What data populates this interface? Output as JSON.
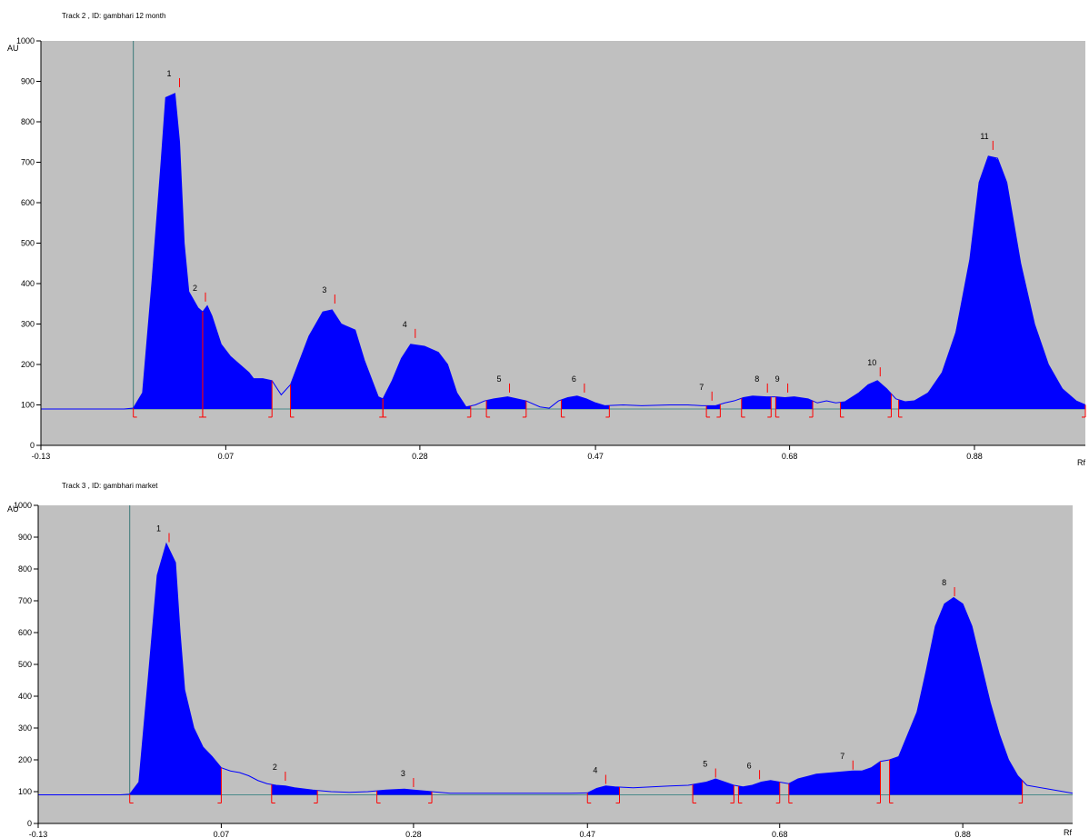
{
  "chart_data": [
    {
      "type": "area",
      "title": "Track  2 , ID: gambhari 12 month",
      "ylabel": "AU",
      "xlabel": "Rf",
      "xlim": [
        -0.13,
        1.0
      ],
      "ylim": [
        0,
        1000
      ],
      "x_ticks": [
        "-0.13",
        "0.07",
        "0.28",
        "0.47",
        "0.68",
        "0.88"
      ],
      "x_tick_values": [
        -0.13,
        0.07,
        0.28,
        0.47,
        0.68,
        0.88
      ],
      "y_ticks": [
        "0",
        "100",
        "200",
        "300",
        "400",
        "500",
        "600",
        "700",
        "800",
        "900",
        "1000"
      ],
      "baseline": 90,
      "application_rf": -0.03,
      "grid": false,
      "trace": [
        [
          -0.13,
          90
        ],
        [
          -0.04,
          90
        ],
        [
          -0.03,
          92
        ],
        [
          -0.02,
          130
        ],
        [
          -0.01,
          400
        ],
        [
          0.0,
          700
        ],
        [
          0.005,
          860
        ],
        [
          0.015,
          870
        ],
        [
          0.02,
          750
        ],
        [
          0.025,
          500
        ],
        [
          0.03,
          380
        ],
        [
          0.04,
          340
        ],
        [
          0.045,
          330
        ],
        [
          0.05,
          345
        ],
        [
          0.055,
          320
        ],
        [
          0.065,
          250
        ],
        [
          0.075,
          220
        ],
        [
          0.085,
          200
        ],
        [
          0.095,
          180
        ],
        [
          0.1,
          165
        ],
        [
          0.11,
          165
        ],
        [
          0.12,
          160
        ],
        [
          0.13,
          125
        ],
        [
          0.14,
          150
        ],
        [
          0.16,
          270
        ],
        [
          0.175,
          330
        ],
        [
          0.185,
          335
        ],
        [
          0.195,
          300
        ],
        [
          0.21,
          285
        ],
        [
          0.22,
          210
        ],
        [
          0.235,
          120
        ],
        [
          0.24,
          115
        ],
        [
          0.25,
          160
        ],
        [
          0.26,
          215
        ],
        [
          0.27,
          250
        ],
        [
          0.285,
          245
        ],
        [
          0.3,
          230
        ],
        [
          0.31,
          200
        ],
        [
          0.32,
          130
        ],
        [
          0.33,
          95
        ],
        [
          0.34,
          100
        ],
        [
          0.35,
          110
        ],
        [
          0.36,
          115
        ],
        [
          0.375,
          120
        ],
        [
          0.385,
          115
        ],
        [
          0.395,
          110
        ],
        [
          0.41,
          95
        ],
        [
          0.42,
          92
        ],
        [
          0.43,
          110
        ],
        [
          0.44,
          118
        ],
        [
          0.45,
          122
        ],
        [
          0.46,
          115
        ],
        [
          0.47,
          105
        ],
        [
          0.48,
          98
        ],
        [
          0.5,
          100
        ],
        [
          0.52,
          98
        ],
        [
          0.55,
          100
        ],
        [
          0.57,
          100
        ],
        [
          0.585,
          98
        ],
        [
          0.6,
          98
        ],
        [
          0.61,
          105
        ],
        [
          0.62,
          110
        ],
        [
          0.63,
          118
        ],
        [
          0.64,
          122
        ],
        [
          0.655,
          120
        ],
        [
          0.665,
          120
        ],
        [
          0.675,
          118
        ],
        [
          0.685,
          120
        ],
        [
          0.7,
          115
        ],
        [
          0.71,
          105
        ],
        [
          0.72,
          110
        ],
        [
          0.73,
          105
        ],
        [
          0.74,
          108
        ],
        [
          0.755,
          130
        ],
        [
          0.765,
          150
        ],
        [
          0.775,
          160
        ],
        [
          0.785,
          140
        ],
        [
          0.795,
          115
        ],
        [
          0.805,
          108
        ],
        [
          0.815,
          110
        ],
        [
          0.83,
          130
        ],
        [
          0.845,
          180
        ],
        [
          0.86,
          280
        ],
        [
          0.875,
          460
        ],
        [
          0.885,
          650
        ],
        [
          0.895,
          715
        ],
        [
          0.905,
          710
        ],
        [
          0.915,
          650
        ],
        [
          0.93,
          450
        ],
        [
          0.945,
          300
        ],
        [
          0.96,
          200
        ],
        [
          0.975,
          140
        ],
        [
          0.99,
          110
        ],
        [
          1.0,
          100
        ]
      ],
      "peaks": [
        {
          "label": "1",
          "rf": 0.02,
          "au": 890,
          "start": -0.03,
          "end": 0.045
        },
        {
          "label": "2",
          "rf": 0.048,
          "au": 360,
          "start": 0.045,
          "end": 0.12
        },
        {
          "label": "3",
          "rf": 0.188,
          "au": 355,
          "start": 0.14,
          "end": 0.24
        },
        {
          "label": "4",
          "rf": 0.275,
          "au": 270,
          "start": 0.24,
          "end": 0.335
        },
        {
          "label": "5",
          "rf": 0.377,
          "au": 135,
          "start": 0.352,
          "end": 0.395
        },
        {
          "label": "6",
          "rf": 0.458,
          "au": 135,
          "start": 0.433,
          "end": 0.485
        },
        {
          "label": "7",
          "rf": 0.596,
          "au": 115,
          "start": 0.59,
          "end": 0.605
        },
        {
          "label": "8",
          "rf": 0.656,
          "au": 135,
          "start": 0.628,
          "end": 0.66
        },
        {
          "label": "9",
          "rf": 0.678,
          "au": 135,
          "start": 0.665,
          "end": 0.705
        },
        {
          "label": "10",
          "rf": 0.778,
          "au": 175,
          "start": 0.735,
          "end": 0.79
        },
        {
          "label": "11",
          "rf": 0.9,
          "au": 735,
          "start": 0.798,
          "end": 1.0
        }
      ]
    },
    {
      "type": "area",
      "title": "Track  3 , ID: gambhari market",
      "ylabel": "AU",
      "xlabel": "Rf",
      "xlim": [
        -0.13,
        1.0
      ],
      "ylim": [
        0,
        1000
      ],
      "x_ticks": [
        "-0.13",
        "0.07",
        "0.28",
        "0.47",
        "0.68",
        "0.88"
      ],
      "x_tick_values": [
        -0.13,
        0.07,
        0.28,
        0.47,
        0.68,
        0.88
      ],
      "y_ticks": [
        "0",
        "100",
        "200",
        "300",
        "400",
        "500",
        "600",
        "700",
        "800",
        "900",
        "1000"
      ],
      "baseline": 90,
      "application_rf": -0.03,
      "grid": false,
      "trace": [
        [
          -0.13,
          90
        ],
        [
          -0.04,
          90
        ],
        [
          -0.03,
          92
        ],
        [
          -0.02,
          130
        ],
        [
          -0.01,
          450
        ],
        [
          0.0,
          780
        ],
        [
          0.01,
          880
        ],
        [
          0.02,
          820
        ],
        [
          0.025,
          600
        ],
        [
          0.03,
          420
        ],
        [
          0.04,
          300
        ],
        [
          0.05,
          240
        ],
        [
          0.06,
          210
        ],
        [
          0.07,
          175
        ],
        [
          0.08,
          165
        ],
        [
          0.09,
          160
        ],
        [
          0.1,
          150
        ],
        [
          0.11,
          135
        ],
        [
          0.12,
          125
        ],
        [
          0.13,
          120
        ],
        [
          0.14,
          118
        ],
        [
          0.15,
          112
        ],
        [
          0.17,
          105
        ],
        [
          0.19,
          100
        ],
        [
          0.21,
          98
        ],
        [
          0.23,
          100
        ],
        [
          0.25,
          105
        ],
        [
          0.27,
          108
        ],
        [
          0.28,
          105
        ],
        [
          0.3,
          100
        ],
        [
          0.32,
          95
        ],
        [
          0.35,
          95
        ],
        [
          0.4,
          95
        ],
        [
          0.45,
          95
        ],
        [
          0.47,
          96
        ],
        [
          0.48,
          110
        ],
        [
          0.49,
          118
        ],
        [
          0.5,
          115
        ],
        [
          0.52,
          112
        ],
        [
          0.54,
          115
        ],
        [
          0.56,
          118
        ],
        [
          0.58,
          120
        ],
        [
          0.59,
          125
        ],
        [
          0.6,
          130
        ],
        [
          0.61,
          140
        ],
        [
          0.62,
          130
        ],
        [
          0.63,
          120
        ],
        [
          0.64,
          115
        ],
        [
          0.65,
          120
        ],
        [
          0.66,
          130
        ],
        [
          0.67,
          135
        ],
        [
          0.68,
          130
        ],
        [
          0.69,
          125
        ],
        [
          0.7,
          140
        ],
        [
          0.72,
          155
        ],
        [
          0.74,
          160
        ],
        [
          0.76,
          165
        ],
        [
          0.77,
          165
        ],
        [
          0.78,
          175
        ],
        [
          0.79,
          195
        ],
        [
          0.8,
          200
        ],
        [
          0.81,
          210
        ],
        [
          0.83,
          350
        ],
        [
          0.84,
          480
        ],
        [
          0.85,
          620
        ],
        [
          0.86,
          690
        ],
        [
          0.87,
          710
        ],
        [
          0.88,
          690
        ],
        [
          0.89,
          620
        ],
        [
          0.9,
          500
        ],
        [
          0.91,
          380
        ],
        [
          0.92,
          280
        ],
        [
          0.93,
          200
        ],
        [
          0.94,
          150
        ],
        [
          0.95,
          120
        ],
        [
          0.97,
          110
        ],
        [
          0.99,
          100
        ],
        [
          1.0,
          95
        ]
      ],
      "peaks": [
        {
          "label": "1",
          "rf": 0.013,
          "au": 890,
          "start": -0.03,
          "end": 0.07
        },
        {
          "label": "2",
          "rf": 0.14,
          "au": 140,
          "start": 0.125,
          "end": 0.175
        },
        {
          "label": "3",
          "rf": 0.28,
          "au": 120,
          "start": 0.24,
          "end": 0.3
        },
        {
          "label": "4",
          "rf": 0.49,
          "au": 130,
          "start": 0.47,
          "end": 0.505
        },
        {
          "label": "5",
          "rf": 0.61,
          "au": 150,
          "start": 0.585,
          "end": 0.63
        },
        {
          "label": "6",
          "rf": 0.658,
          "au": 145,
          "start": 0.635,
          "end": 0.68
        },
        {
          "label": "7",
          "rf": 0.76,
          "au": 175,
          "start": 0.69,
          "end": 0.79
        },
        {
          "label": "8",
          "rf": 0.871,
          "au": 720,
          "start": 0.8,
          "end": 0.945
        }
      ]
    }
  ]
}
